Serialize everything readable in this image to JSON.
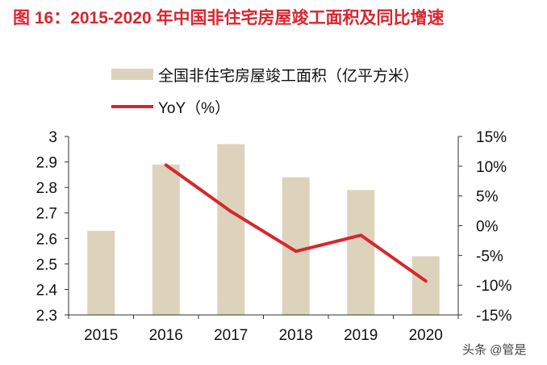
{
  "title": "图 16：2015-2020 年中国非住宅房屋竣工面积及同比增速",
  "watermark": "头条 @管是",
  "chart_data": {
    "type": "bar",
    "title": "图 16：2015-2020 年中国非住宅房屋竣工面积及同比增速",
    "categories": [
      "2015",
      "2016",
      "2017",
      "2018",
      "2019",
      "2020"
    ],
    "series": [
      {
        "name": "全国非住宅房屋竣工面积（亿平方米）",
        "type": "bar",
        "axis": "left",
        "color": "#ddd3bd",
        "values": [
          2.63,
          2.89,
          2.97,
          2.84,
          2.79,
          2.53
        ]
      },
      {
        "name": "YoY（%）",
        "type": "line",
        "axis": "right",
        "color": "#d7262e",
        "values": [
          null,
          10.2,
          2.4,
          -4.3,
          -1.6,
          -9.3
        ]
      }
    ],
    "y_left": {
      "range": [
        2.3,
        3.0
      ],
      "ticks": [
        "2.3",
        "2.4",
        "2.5",
        "2.6",
        "2.7",
        "2.8",
        "2.9",
        "3"
      ]
    },
    "y_right": {
      "range": [
        -15,
        15
      ],
      "ticks": [
        "-15%",
        "-10%",
        "-5%",
        "0%",
        "5%",
        "10%",
        "15%"
      ]
    },
    "grid": false,
    "legend": "top"
  }
}
